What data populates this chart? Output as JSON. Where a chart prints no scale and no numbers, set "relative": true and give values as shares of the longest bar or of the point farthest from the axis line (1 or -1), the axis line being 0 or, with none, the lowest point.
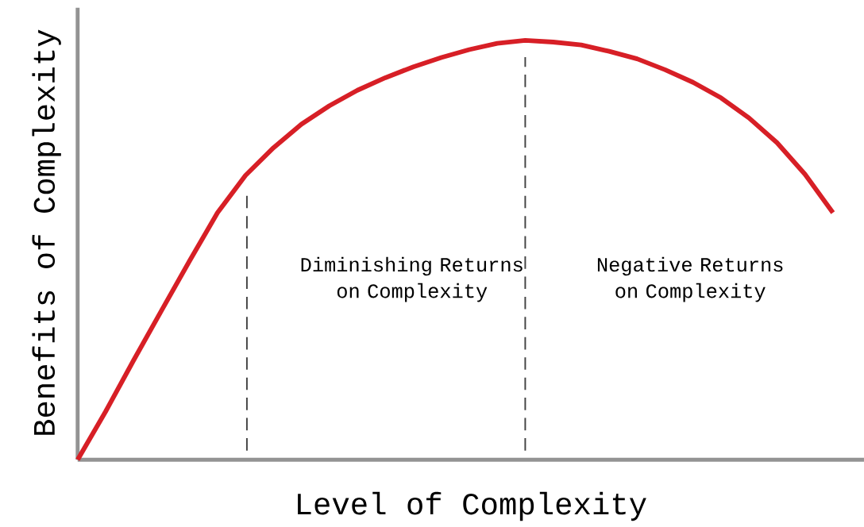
{
  "chart_data": {
    "type": "line",
    "relative": true,
    "xlabel": "Level of Complexity",
    "ylabel": "Benefits of Complexity",
    "categories": [
      null,
      null,
      null,
      null,
      null,
      null,
      null,
      null,
      null,
      null,
      null,
      null,
      null,
      null,
      null,
      null,
      null,
      null,
      null,
      null,
      null,
      null,
      null,
      null,
      null,
      null,
      null,
      null
    ],
    "values": [
      0,
      0.115,
      0.237,
      0.356,
      0.474,
      0.589,
      0.678,
      0.744,
      0.8,
      0.844,
      0.881,
      0.911,
      0.937,
      0.959,
      0.978,
      0.993,
      1,
      0.996,
      0.989,
      0.974,
      0.956,
      0.93,
      0.9,
      0.863,
      0.815,
      0.756,
      0.681,
      0.589
    ],
    "color": "#d71f26",
    "annotations": [
      "Diminishing Returns on Complexity",
      "Negative Returns on Complexity"
    ]
  }
}
